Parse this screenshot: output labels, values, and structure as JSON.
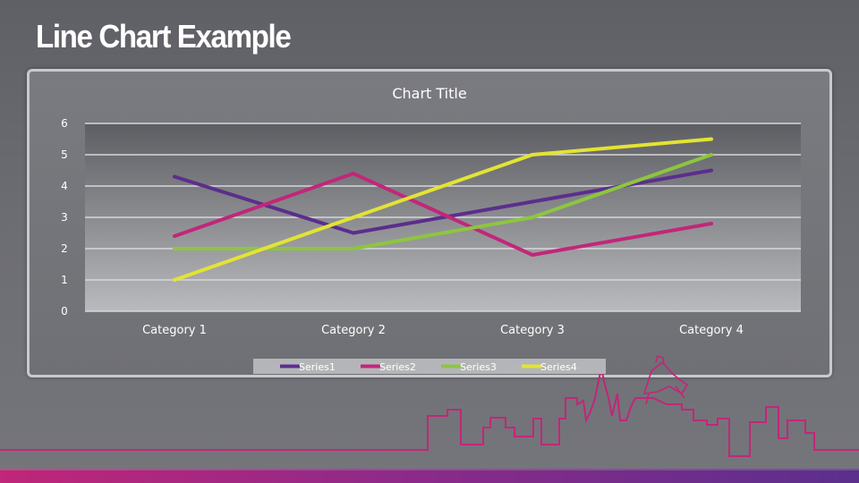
{
  "slide": {
    "title": "Line Chart Example"
  },
  "colors": {
    "series1": "#5b2e8c",
    "series2": "#c2267a",
    "series3": "#8dc63f",
    "series4": "#e3e432",
    "accent": "#c2267a"
  },
  "chart_data": {
    "type": "line",
    "title": "Chart Title",
    "categories": [
      "Category 1",
      "Category 2",
      "Category 3",
      "Category 4"
    ],
    "ylim": [
      0,
      6
    ],
    "yticks": [
      0,
      1,
      2,
      3,
      4,
      5,
      6
    ],
    "grid": true,
    "legend_position": "bottom",
    "series": [
      {
        "name": "Series1",
        "values": [
          4.3,
          2.5,
          3.5,
          4.5
        ],
        "color": "#5b2e8c"
      },
      {
        "name": "Series2",
        "values": [
          2.4,
          4.4,
          1.8,
          2.8
        ],
        "color": "#c2267a"
      },
      {
        "name": "Series3",
        "values": [
          2.0,
          2.0,
          3.0,
          5.0
        ],
        "color": "#8dc63f"
      },
      {
        "name": "Series4",
        "values": [
          1.0,
          3.0,
          5.0,
          5.5
        ],
        "color": "#e3e432"
      }
    ]
  }
}
